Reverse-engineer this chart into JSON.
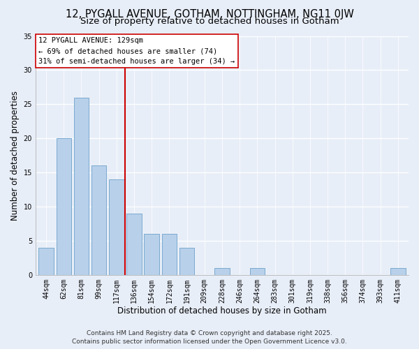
{
  "title": "12, PYGALL AVENUE, GOTHAM, NOTTINGHAM, NG11 0JW",
  "subtitle": "Size of property relative to detached houses in Gotham",
  "xlabel": "Distribution of detached houses by size in Gotham",
  "ylabel": "Number of detached properties",
  "bar_labels": [
    "44sqm",
    "62sqm",
    "81sqm",
    "99sqm",
    "117sqm",
    "136sqm",
    "154sqm",
    "172sqm",
    "191sqm",
    "209sqm",
    "228sqm",
    "246sqm",
    "264sqm",
    "283sqm",
    "301sqm",
    "319sqm",
    "338sqm",
    "356sqm",
    "374sqm",
    "393sqm",
    "411sqm"
  ],
  "bar_values": [
    4,
    20,
    26,
    16,
    14,
    9,
    6,
    6,
    4,
    0,
    1,
    0,
    1,
    0,
    0,
    0,
    0,
    0,
    0,
    0,
    1
  ],
  "bar_color": "#b8d0ea",
  "bar_edge_color": "#7aaad0",
  "vline_x": 4.5,
  "vline_color": "#cc0000",
  "annotation_title": "12 PYGALL AVENUE: 129sqm",
  "annotation_line1": "← 69% of detached houses are smaller (74)",
  "annotation_line2": "31% of semi-detached houses are larger (34) →",
  "ylim": [
    0,
    35
  ],
  "yticks": [
    0,
    5,
    10,
    15,
    20,
    25,
    30,
    35
  ],
  "background_color": "#e8eef8",
  "plot_bg_color": "#e8eef8",
  "grid_color": "#ffffff",
  "footer_line1": "Contains HM Land Registry data © Crown copyright and database right 2025.",
  "footer_line2": "Contains public sector information licensed under the Open Government Licence v3.0.",
  "title_fontsize": 10.5,
  "subtitle_fontsize": 9.5,
  "axis_label_fontsize": 8.5,
  "tick_fontsize": 7,
  "footer_fontsize": 6.5,
  "ann_fontsize": 7.5
}
